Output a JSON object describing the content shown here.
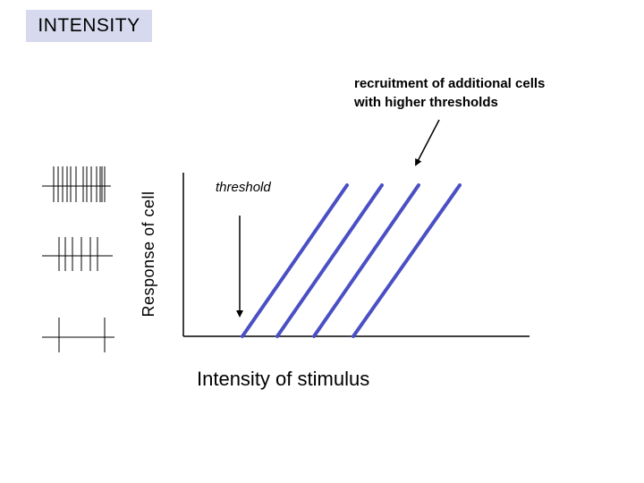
{
  "title": "INTENSITY",
  "annotation": {
    "line1": "recruitment of additional cells",
    "line2": "with higher thresholds"
  },
  "threshold_label": "threshold",
  "x_axis_label": "Intensity of stimulus",
  "y_axis_label": "Response of cell",
  "colors": {
    "title_background": "#d7d9ef",
    "response_lines": "#4a4fc4",
    "axes": "#000000"
  }
}
